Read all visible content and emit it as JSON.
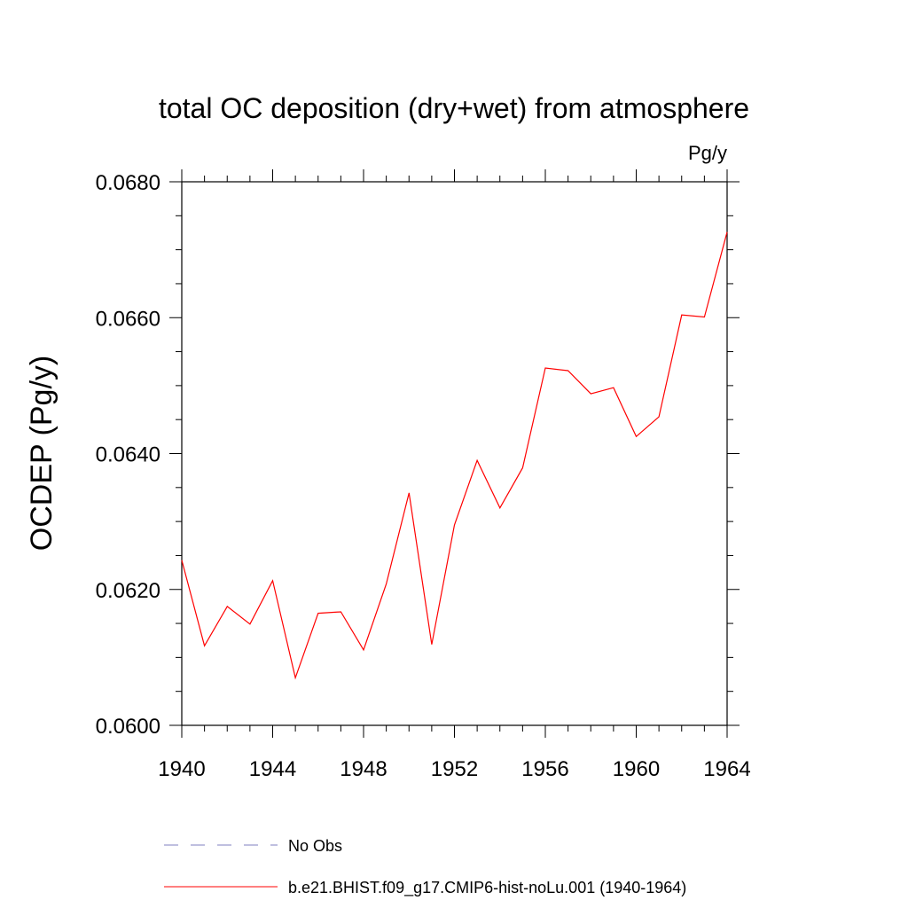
{
  "chart_data": {
    "type": "line",
    "title": "total OC deposition (dry+wet) from atmosphere",
    "units": "Pg/y",
    "xlabel": "",
    "ylabel": "OCDEP  (Pg/y)",
    "xlim": [
      1940,
      1964
    ],
    "ylim": [
      0.06,
      0.068
    ],
    "x_ticks": [
      1940,
      1944,
      1948,
      1952,
      1956,
      1960,
      1964
    ],
    "x_tick_labels": [
      "1940",
      "1944",
      "1948",
      "1952",
      "1956",
      "1960",
      "1964"
    ],
    "y_ticks": [
      0.06,
      0.062,
      0.064,
      0.066,
      0.068
    ],
    "y_tick_labels": [
      "0.0600",
      "0.0620",
      "0.0640",
      "0.0660",
      "0.0680"
    ],
    "grid": false,
    "legend_position": "bottom",
    "legend": [
      {
        "label": "No Obs",
        "color": "#7f7fc0",
        "style": "dashed"
      },
      {
        "label": "b.e21.BHIST.f09_g17.CMIP6-hist-noLu.001 (1940-1964)",
        "color": "#ff0000",
        "style": "solid"
      }
    ],
    "series": [
      {
        "name": "b.e21.BHIST.f09_g17.CMIP6-hist-noLu.001 (1940-1964)",
        "color": "#ff0000",
        "x": [
          1940,
          1941,
          1942,
          1943,
          1944,
          1945,
          1946,
          1947,
          1948,
          1949,
          1950,
          1951,
          1952,
          1953,
          1954,
          1955,
          1956,
          1957,
          1958,
          1959,
          1960,
          1961,
          1962,
          1963,
          1964
        ],
        "y": [
          0.06243,
          0.06117,
          0.06175,
          0.06149,
          0.06213,
          0.0607,
          0.06165,
          0.06167,
          0.06111,
          0.06208,
          0.06342,
          0.06119,
          0.06295,
          0.0639,
          0.0632,
          0.06379,
          0.06526,
          0.06522,
          0.06488,
          0.06497,
          0.06425,
          0.06454,
          0.06604,
          0.06601,
          0.06726
        ]
      }
    ]
  }
}
